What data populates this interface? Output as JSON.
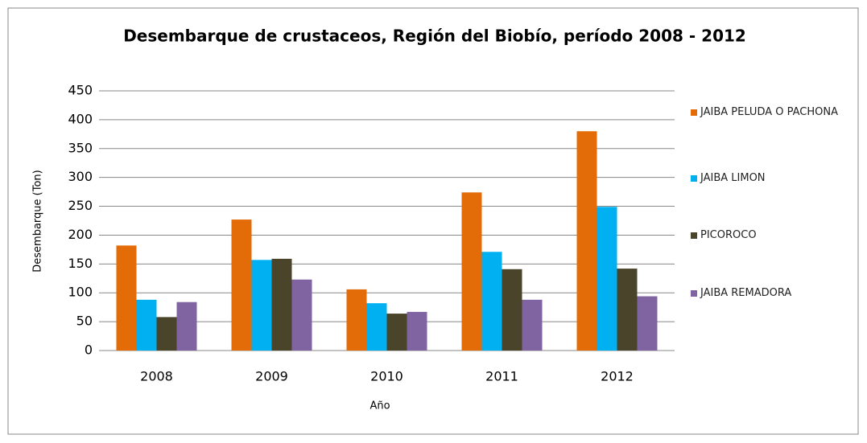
{
  "chart_data": {
    "type": "bar",
    "title": "Desembarque de crustaceos, Región del Biobío, período 2008 - 2012",
    "x_label": "Año",
    "y_label": "Desembarque (Ton)",
    "categories": [
      "2008",
      "2009",
      "2010",
      "2011",
      "2012"
    ],
    "series": [
      {
        "name": "JAIBA PELUDA O PACHONA",
        "color": "#e36c09",
        "values": [
          182,
          227,
          106,
          274,
          380
        ]
      },
      {
        "name": "JAIBA LIMON",
        "color": "#00b0f0",
        "values": [
          88,
          157,
          82,
          171,
          249
        ]
      },
      {
        "name": "PICOROCO",
        "color": "#4a452a",
        "values": [
          58,
          159,
          64,
          141,
          142
        ]
      },
      {
        "name": "JAIBA REMADORA",
        "color": "#8064a2",
        "values": [
          84,
          123,
          67,
          88,
          94
        ]
      }
    ],
    "ylim": [
      0,
      450
    ],
    "yticks": [
      0,
      50,
      100,
      150,
      200,
      250,
      300,
      350,
      400,
      450
    ],
    "grid": true,
    "legend": "right"
  }
}
